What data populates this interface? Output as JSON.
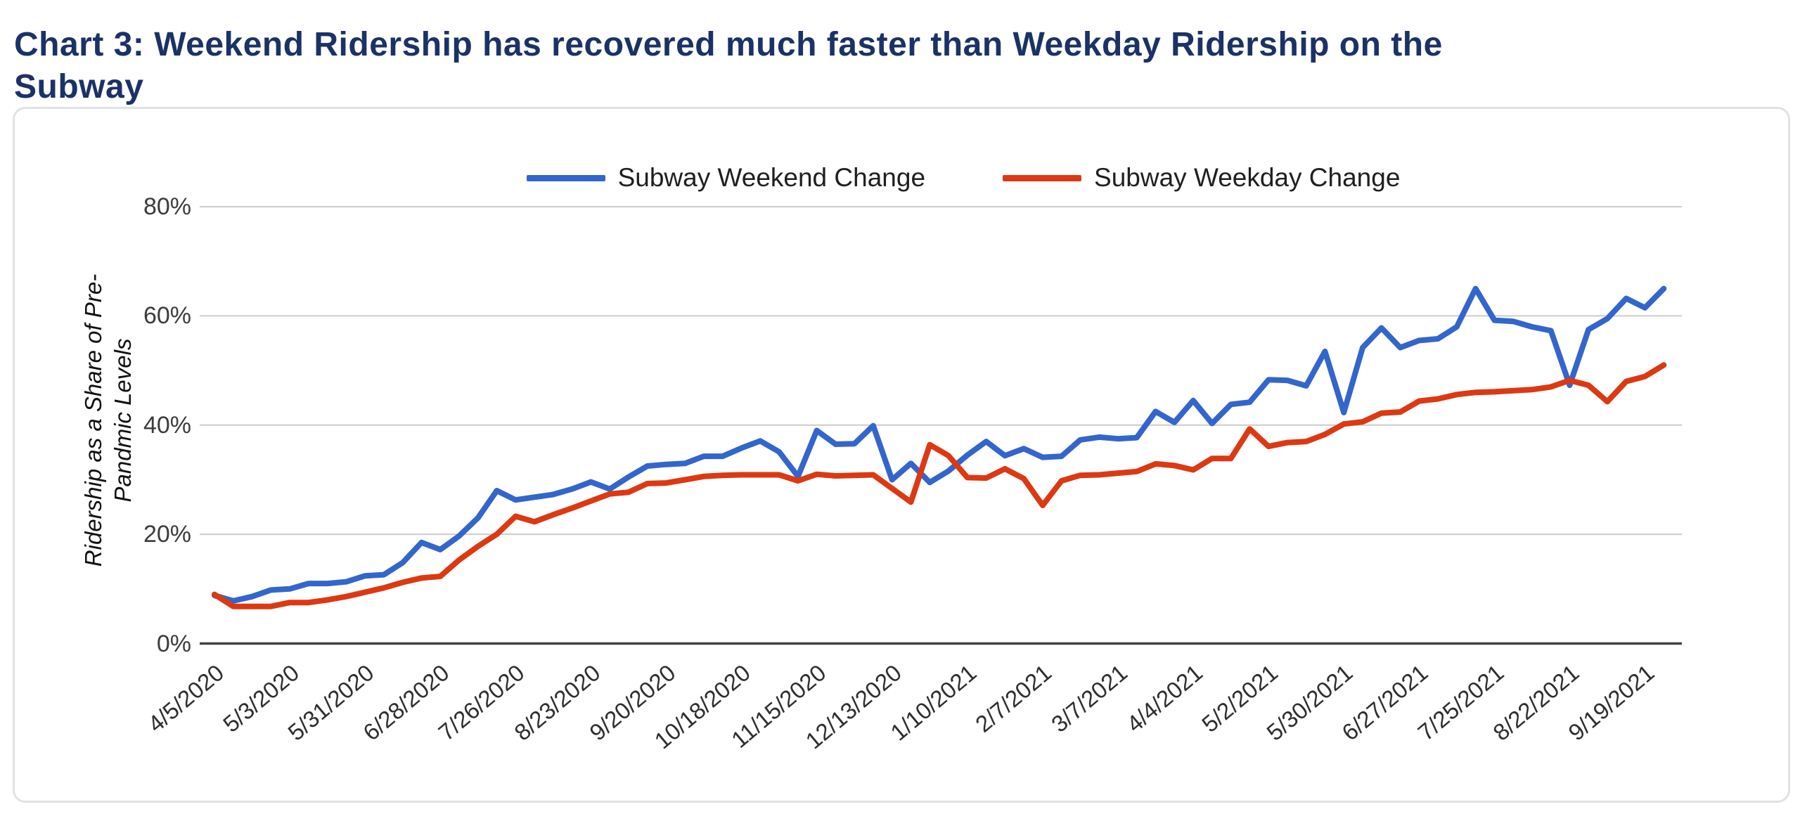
{
  "page": {
    "heading": "Chart 3: Weekend Ridership has recovered much faster than Weekday Ridership on the Subway"
  },
  "chart_data": {
    "type": "line",
    "title": "Chart 3: Weekend Ridership has recovered much faster than Weekday Ridership on the Subway",
    "xlabel": "",
    "ylabel": "Ridership as a Share of Pre-Pandmic Levels",
    "ylim": [
      0,
      80
    ],
    "y_ticks": [
      0,
      20,
      40,
      60,
      80
    ],
    "y_tick_suffix": "%",
    "grid": true,
    "legend_position": "top-center",
    "x_tick_every": 4,
    "x": [
      "4/5/2020",
      "4/12/2020",
      "4/19/2020",
      "4/26/2020",
      "5/3/2020",
      "5/10/2020",
      "5/17/2020",
      "5/24/2020",
      "5/31/2020",
      "6/7/2020",
      "6/14/2020",
      "6/21/2020",
      "6/28/2020",
      "7/5/2020",
      "7/12/2020",
      "7/19/2020",
      "7/26/2020",
      "8/2/2020",
      "8/9/2020",
      "8/16/2020",
      "8/23/2020",
      "8/30/2020",
      "9/6/2020",
      "9/13/2020",
      "9/20/2020",
      "9/27/2020",
      "10/4/2020",
      "10/11/2020",
      "10/18/2020",
      "10/25/2020",
      "11/1/2020",
      "11/8/2020",
      "11/15/2020",
      "11/22/2020",
      "11/29/2020",
      "12/6/2020",
      "12/13/2020",
      "12/20/2020",
      "12/27/2020",
      "1/3/2021",
      "1/10/2021",
      "1/17/2021",
      "1/24/2021",
      "1/31/2021",
      "2/7/2021",
      "2/14/2021",
      "2/21/2021",
      "2/28/2021",
      "3/7/2021",
      "3/14/2021",
      "3/21/2021",
      "3/28/2021",
      "4/4/2021",
      "4/11/2021",
      "4/18/2021",
      "4/25/2021",
      "5/2/2021",
      "5/9/2021",
      "5/16/2021",
      "5/23/2021",
      "5/30/2021",
      "6/6/2021",
      "6/13/2021",
      "6/20/2021",
      "6/27/2021",
      "7/4/2021",
      "7/11/2021",
      "7/18/2021",
      "7/25/2021",
      "8/1/2021",
      "8/8/2021",
      "8/15/2021",
      "8/22/2021",
      "8/29/2021",
      "9/5/2021",
      "9/12/2021",
      "9/19/2021",
      "9/26/2021"
    ],
    "series": [
      {
        "name": "Subway Weekend Change",
        "color": "#3366cc",
        "values": [
          8.8,
          7.8,
          8.6,
          9.8,
          10,
          11,
          11,
          11.3,
          12.4,
          12.6,
          14.8,
          18.5,
          17.2,
          19.7,
          23,
          28,
          26.3,
          26.8,
          27.3,
          28.3,
          29.6,
          28.3,
          30.5,
          32.5,
          32.8,
          33,
          34.3,
          34.3,
          35.8,
          37.1,
          35.1,
          30.6,
          39,
          36.5,
          36.6,
          39.9,
          30,
          33,
          29.5,
          31.6,
          34.5,
          37,
          34.4,
          35.7,
          34.1,
          34.3,
          37.3,
          37.8,
          37.5,
          37.7,
          42.5,
          40.5,
          44.5,
          40.3,
          43.8,
          44.2,
          48.3,
          48.2,
          47.2,
          53.5,
          42.3,
          54.2,
          57.8,
          54.2,
          55.5,
          55.8,
          58,
          65,
          59.2,
          59,
          58,
          57.3,
          47.3,
          57.5,
          59.5,
          63.2,
          61.5,
          65
        ]
      },
      {
        "name": "Subway Weekday Change",
        "color": "#dc3912",
        "values": [
          9,
          6.8,
          6.8,
          6.8,
          7.5,
          7.5,
          8,
          8.6,
          9.4,
          10.2,
          11.2,
          12,
          12.3,
          15.3,
          17.8,
          20,
          23.3,
          22.3,
          23.6,
          24.8,
          26.1,
          27.4,
          27.7,
          29.3,
          29.4,
          30,
          30.6,
          30.8,
          30.9,
          30.9,
          30.9,
          29.8,
          31,
          30.7,
          30.8,
          30.9,
          28.4,
          25.9,
          36.4,
          34.4,
          30.4,
          30.3,
          32,
          30.2,
          25.3,
          29.8,
          30.8,
          30.9,
          31.2,
          31.5,
          32.9,
          32.6,
          31.8,
          33.9,
          33.9,
          39.3,
          36.1,
          36.8,
          37,
          38.3,
          40.2,
          40.6,
          42.2,
          42.4,
          44.4,
          44.8,
          45.6,
          46,
          46.1,
          46.3,
          46.5,
          47,
          48.2,
          47.3,
          44.3,
          48,
          48.9,
          51
        ]
      }
    ],
    "style": {
      "title_color": "#1b3266",
      "gridline_color": "#cccccc",
      "axis_line_color": "#424242",
      "tick_label_color": "#2e2e2e",
      "legend_text_color": "#1f1f1f",
      "card_border_color": "#e0e2e4",
      "background": "#ffffff"
    }
  }
}
